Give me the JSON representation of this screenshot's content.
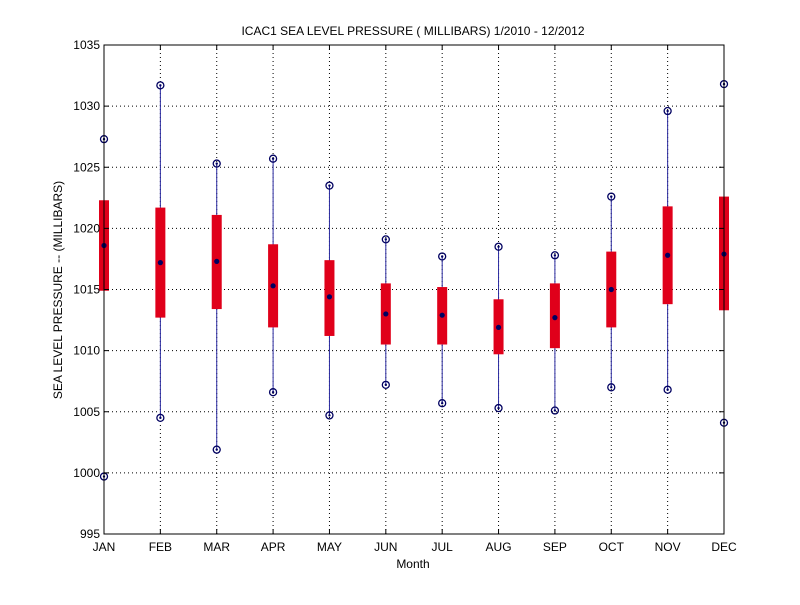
{
  "chart_data": {
    "type": "box",
    "title": "ICAC1  SEA LEVEL PRESSURE ( MILLIBARS) 1/2010 - 12/2012",
    "xlabel": "Month",
    "ylabel": "SEA LEVEL PRESSURE -- (MILLIBARS)",
    "ylim": [
      995,
      1035
    ],
    "yticks": [
      995,
      1000,
      1005,
      1010,
      1015,
      1020,
      1025,
      1030,
      1035
    ],
    "grid": true,
    "categories": [
      "JAN",
      "FEB",
      "MAR",
      "APR",
      "MAY",
      "JUN",
      "JUL",
      "AUG",
      "SEP",
      "OCT",
      "NOV",
      "DEC"
    ],
    "min": [
      999.7,
      1004.5,
      1001.9,
      1006.6,
      1004.7,
      1007.2,
      1005.7,
      1005.3,
      1005.1,
      1007.0,
      1006.8,
      1004.1
    ],
    "q1": [
      1014.9,
      1012.7,
      1013.4,
      1011.9,
      1011.2,
      1010.5,
      1010.5,
      1009.7,
      1010.2,
      1011.9,
      1013.8,
      1013.3
    ],
    "median": [
      1018.6,
      1017.2,
      1017.3,
      1015.3,
      1014.4,
      1013.0,
      1012.9,
      1011.9,
      1012.7,
      1015.0,
      1017.8,
      1017.9
    ],
    "q3": [
      1022.3,
      1021.7,
      1021.1,
      1018.7,
      1017.4,
      1015.5,
      1015.2,
      1014.2,
      1015.5,
      1018.1,
      1021.8,
      1022.6
    ],
    "max": [
      1027.3,
      1031.7,
      1025.3,
      1025.7,
      1023.5,
      1019.1,
      1017.7,
      1018.5,
      1017.8,
      1022.6,
      1029.6,
      1031.8
    ],
    "colors": {
      "whisker": "#2a2aa0",
      "box": "#e0001a",
      "marker": "#000060",
      "grid": "#000000",
      "axis": "#000000"
    }
  }
}
